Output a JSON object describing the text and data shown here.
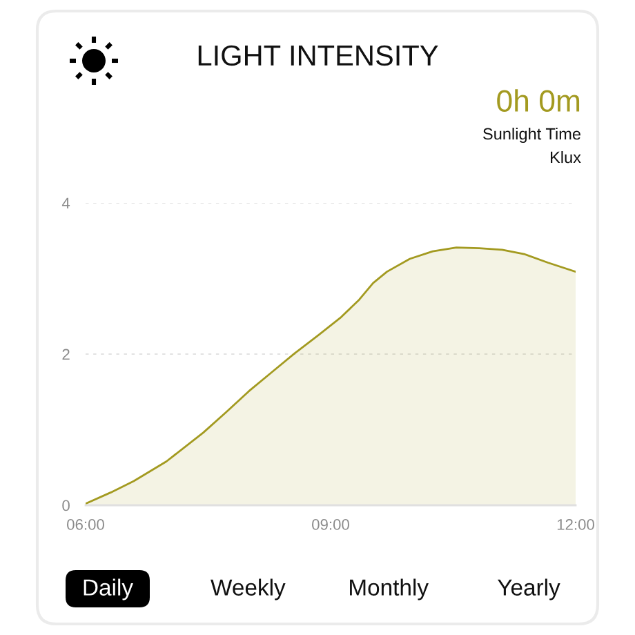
{
  "chart_data": {
    "type": "area",
    "title": "LIGHT INTENSITY",
    "ylabel": "Klux",
    "annotations": [
      "0h 0m",
      "Sunlight Time",
      "Daily",
      "Weekly",
      "Monthly",
      "Yearly"
    ],
    "x": [
      6.0,
      6.31,
      6.59,
      6.99,
      7.44,
      7.72,
      8.0,
      8.28,
      8.56,
      8.85,
      9.13,
      9.35,
      9.52,
      9.69,
      9.97,
      10.25,
      10.54,
      10.82,
      11.1,
      11.38,
      11.66,
      12.0
    ],
    "series": [
      {
        "color": "#a39a20",
        "values": [
          0.02,
          0.17,
          0.32,
          0.58,
          0.96,
          1.23,
          1.51,
          1.76,
          2.01,
          2.25,
          2.49,
          2.72,
          2.94,
          3.09,
          3.26,
          3.36,
          3.41,
          3.4,
          3.38,
          3.32,
          3.21,
          3.09
        ]
      }
    ],
    "xlim": [
      6,
      12
    ],
    "xticks": [
      {
        "value": 6,
        "label": "06:00"
      },
      {
        "value": 9,
        "label": "09:00"
      },
      {
        "value": 12,
        "label": "12:00"
      }
    ],
    "ylim": [
      0,
      4
    ],
    "yticks": [
      0,
      2,
      4
    ],
    "grid": "y"
  }
}
